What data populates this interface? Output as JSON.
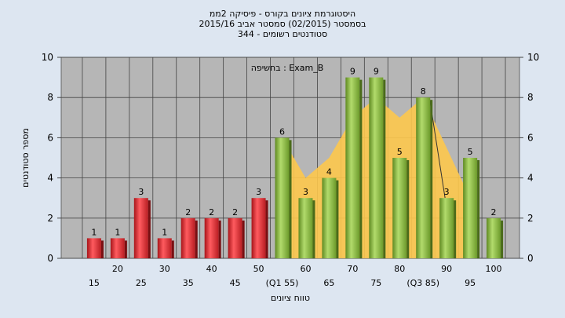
{
  "title_lines": [
    "היסטוגרמת ציונים בקורס - פיסיקה 2ממ",
    "בסמסטר (02/2015) סמסטר אביב 2015/16",
    "סטודנטים רשומים - 344"
  ],
  "colors": {
    "background": "#dde6f1",
    "plot_bg": "#b6b6b6",
    "red_bar": "#e8333a",
    "green_bar": "#8cbb45",
    "area": "#fdc84d",
    "curve": "#333333"
  },
  "chart_data": {
    "type": "bar",
    "annotation": "בחשיפה : Exam_B",
    "ylabel": "מספר סטודנטים",
    "xlabel": "טווח ציונים",
    "ylim": [
      0,
      10
    ],
    "yticks": [
      0,
      2,
      4,
      6,
      8,
      10
    ],
    "grid": true,
    "categories": [
      "15",
      "20",
      "25",
      "30",
      "35",
      "40",
      "45",
      "50",
      "(Q1 55)",
      "60",
      "65",
      "70",
      "75",
      "80",
      "(Q3 85)",
      "90",
      "95",
      "100"
    ],
    "values": [
      1,
      1,
      3,
      1,
      2,
      2,
      2,
      3,
      6,
      3,
      4,
      9,
      9,
      5,
      8,
      3,
      5,
      2
    ],
    "bar_colors": [
      "red",
      "red",
      "red",
      "red",
      "red",
      "red",
      "red",
      "red",
      "green",
      "green",
      "green",
      "green",
      "green",
      "green",
      "green",
      "green",
      "green",
      "green"
    ],
    "area_values": [
      null,
      null,
      null,
      null,
      null,
      null,
      null,
      null,
      6,
      4,
      5,
      7,
      8,
      7,
      8,
      null,
      null,
      null
    ],
    "area_end": [
      16,
      3
    ],
    "curve_segment": [
      [
        14,
        8
      ],
      [
        15,
        3
      ]
    ]
  }
}
